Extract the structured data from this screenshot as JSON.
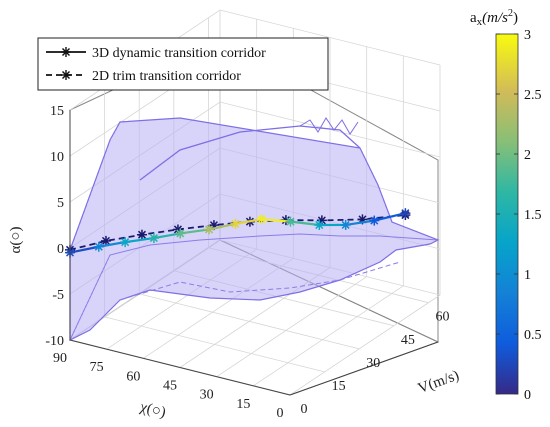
{
  "chart_data": {
    "type": "surface3d-line",
    "title": "",
    "xlabel": "χ(○)",
    "ylabel": "V(m/s)",
    "zlabel": "α(○)",
    "colorbar_label": "a_x(m/s^2)",
    "colorbar_label_main": "a",
    "colorbar_label_sub": "x",
    "colorbar_label_units": "(m/s",
    "colorbar_label_exp": "2",
    "colorbar_label_close": ")",
    "x_ticks": [
      "90",
      "75",
      "60",
      "45",
      "30",
      "15",
      "0"
    ],
    "y_ticks": [
      "0",
      "15",
      "30",
      "45",
      "60"
    ],
    "z_ticks": [
      "-10",
      "-5",
      "0",
      "5",
      "10",
      "15"
    ],
    "colorbar_ticks": [
      "0",
      "0.5",
      "1",
      "1.5",
      "2",
      "2.5",
      "3"
    ],
    "xlim": [
      0,
      90
    ],
    "ylim": [
      0,
      65
    ],
    "zlim": [
      -10,
      15
    ],
    "clim": [
      0,
      3
    ],
    "colormap": "parula",
    "surface_color": "#9b8ff0",
    "line_color": "#1a1a6e",
    "grid": true,
    "legend_position": "top-left",
    "series": [
      {
        "name": "3D dynamic transition corridor",
        "style": "solid",
        "points": [
          {
            "chi": 90,
            "V": 0,
            "alpha": -0.5,
            "ax": 0.3
          },
          {
            "chi": 82,
            "V": 4,
            "alpha": 0.0,
            "ax": 0.9
          },
          {
            "chi": 75,
            "V": 8,
            "alpha": 0.3,
            "ax": 1.3
          },
          {
            "chi": 67,
            "V": 12,
            "alpha": 0.6,
            "ax": 1.6
          },
          {
            "chi": 60,
            "V": 16,
            "alpha": 0.9,
            "ax": 1.9
          },
          {
            "chi": 52,
            "V": 20,
            "alpha": 1.2,
            "ax": 2.3
          },
          {
            "chi": 45,
            "V": 24,
            "alpha": 1.6,
            "ax": 2.7
          },
          {
            "chi": 38,
            "V": 28,
            "alpha": 1.9,
            "ax": 2.9
          },
          {
            "chi": 30,
            "V": 32,
            "alpha": 1.5,
            "ax": 1.8
          },
          {
            "chi": 22,
            "V": 36,
            "alpha": 1.0,
            "ax": 1.3
          },
          {
            "chi": 15,
            "V": 40,
            "alpha": 0.8,
            "ax": 0.9
          },
          {
            "chi": 8,
            "V": 45,
            "alpha": 0.9,
            "ax": 0.4
          },
          {
            "chi": 0,
            "V": 50,
            "alpha": 1.4,
            "ax": 0.2
          }
        ]
      },
      {
        "name": "2D trim transition corridor",
        "style": "dashed",
        "points": [
          {
            "chi": 90,
            "V": 0,
            "alpha": -0.2
          },
          {
            "chi": 80,
            "V": 5,
            "alpha": 0.6
          },
          {
            "chi": 70,
            "V": 10,
            "alpha": 1.1
          },
          {
            "chi": 60,
            "V": 15,
            "alpha": 1.5
          },
          {
            "chi": 50,
            "V": 20,
            "alpha": 1.8
          },
          {
            "chi": 40,
            "V": 25,
            "alpha": 2.0
          },
          {
            "chi": 30,
            "V": 30,
            "alpha": 2.0
          },
          {
            "chi": 20,
            "V": 35,
            "alpha": 1.8
          },
          {
            "chi": 10,
            "V": 42,
            "alpha": 1.4
          },
          {
            "chi": 0,
            "V": 50,
            "alpha": 1.2
          }
        ]
      }
    ]
  }
}
